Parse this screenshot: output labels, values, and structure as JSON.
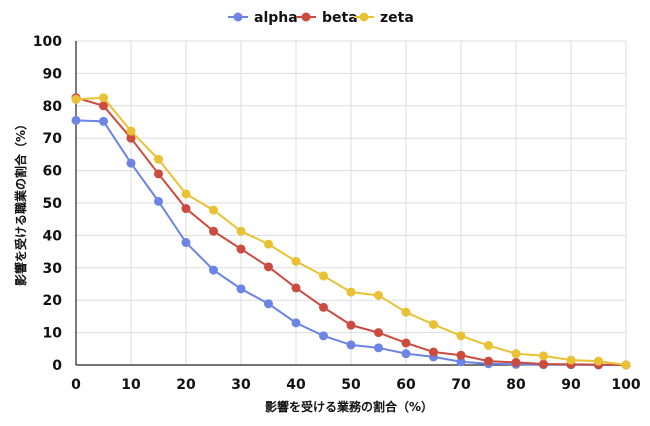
{
  "chart_data": {
    "type": "line",
    "x": [
      0,
      5,
      10,
      15,
      20,
      25,
      30,
      35,
      40,
      45,
      50,
      55,
      60,
      65,
      70,
      75,
      80,
      85,
      90,
      95,
      100
    ],
    "series": [
      {
        "name": "alpha",
        "color": "#6b84e6",
        "values": [
          75.5,
          75.2,
          62.3,
          50.5,
          37.8,
          29.3,
          23.5,
          18.9,
          13.0,
          9.0,
          6.2,
          5.3,
          3.5,
          2.5,
          1.0,
          0.4,
          0.2,
          0.1,
          0.1,
          0.0,
          0.0
        ]
      },
      {
        "name": "beta",
        "color": "#cc4b3f",
        "values": [
          82.5,
          80.0,
          70.0,
          59.0,
          48.3,
          41.3,
          35.8,
          30.3,
          23.8,
          17.8,
          12.3,
          10.0,
          6.8,
          4.0,
          3.0,
          1.2,
          0.8,
          0.3,
          0.2,
          0.1,
          0.0
        ]
      },
      {
        "name": "zeta",
        "color": "#e8c234",
        "values": [
          82.0,
          82.5,
          72.2,
          63.5,
          52.8,
          47.8,
          41.3,
          37.3,
          32.0,
          27.5,
          22.5,
          21.5,
          16.3,
          12.5,
          9.0,
          6.0,
          3.5,
          2.8,
          1.5,
          1.2,
          0.0
        ]
      }
    ],
    "xlabel": "影響を受ける業務の割合（%）",
    "ylabel": "影響を受ける職業の割合（%）",
    "xlim": [
      0,
      100
    ],
    "ylim": [
      0,
      100
    ],
    "xticks": [
      0,
      10,
      20,
      30,
      40,
      50,
      60,
      70,
      80,
      90,
      100
    ],
    "yticks": [
      0,
      10,
      20,
      30,
      40,
      50,
      60,
      70,
      80,
      90,
      100
    ],
    "grid": true,
    "legend_position": "top-center",
    "colors": {
      "grid": "#dddddd",
      "axis": "#222222",
      "text": "#111111"
    }
  }
}
